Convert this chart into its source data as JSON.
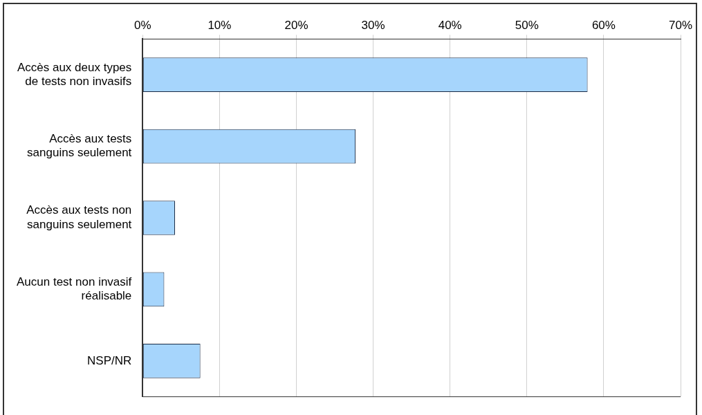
{
  "chart_data": {
    "type": "bar",
    "orientation": "horizontal",
    "categories": [
      [
        "Accès aux deux types",
        "de tests non invasifs"
      ],
      [
        "Accès aux tests",
        "sanguins seulement"
      ],
      [
        "Accès aux tests non",
        "sanguins seulement"
      ],
      [
        "Aucun test non invasif",
        "réalisable"
      ],
      "NSP/NR"
    ],
    "values": [
      0.579,
      0.277,
      0.042,
      0.028,
      0.075
    ],
    "color": "#a6d5fc",
    "xlim": [
      0,
      0.7
    ],
    "xticks": [
      {
        "value": 0,
        "label": "0%"
      },
      {
        "value": 0.1,
        "label": "10%"
      },
      {
        "value": 0.2,
        "label": "20%"
      },
      {
        "value": 0.3,
        "label": "30%"
      },
      {
        "value": 0.4,
        "label": "40%"
      },
      {
        "value": 0.5,
        "label": "50%"
      },
      {
        "value": 0.6,
        "label": "60%"
      },
      {
        "value": 0.7,
        "label": "70%"
      }
    ],
    "grid": "x",
    "legend": false
  }
}
